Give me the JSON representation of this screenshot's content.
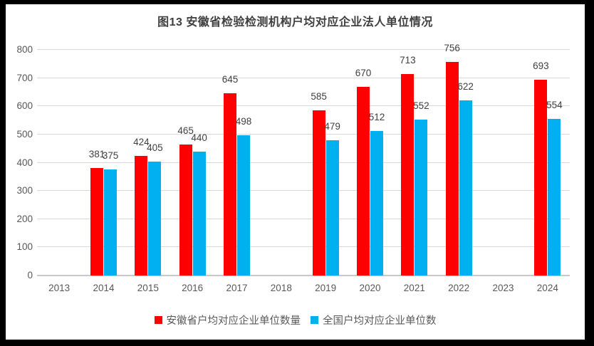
{
  "chart_data": {
    "type": "bar",
    "title": "图13 安徽省检验检测机构户均对应企业法人单位情况",
    "categories": [
      "2013",
      "2014",
      "2015",
      "2016",
      "2017",
      "2018",
      "2019",
      "2020",
      "2021",
      "2022",
      "2023",
      "2024"
    ],
    "series": [
      {
        "name": "安徽省户均对应企业单位数量",
        "color": "#FF0000",
        "values": [
          null,
          381,
          424,
          465,
          645,
          null,
          585,
          670,
          713,
          756,
          null,
          693
        ]
      },
      {
        "name": "全国户均对应企业单位数",
        "color": "#00B0F0",
        "values": [
          null,
          375,
          405,
          440,
          498,
          null,
          479,
          512,
          552,
          622,
          null,
          554
        ]
      }
    ],
    "ylim": [
      0,
      800
    ],
    "ytick_step": 100,
    "yticks": [
      "0",
      "100",
      "200",
      "300",
      "400",
      "500",
      "600",
      "700",
      "800"
    ],
    "grid": true,
    "legend_position": "bottom",
    "data_labels": true,
    "colors": {
      "grid": "#D9D9D9",
      "axis_text": "#595959",
      "data_label": "#404040",
      "title_text": "#404040",
      "frame_border": "#000000",
      "background": "#FFFFFF"
    }
  }
}
